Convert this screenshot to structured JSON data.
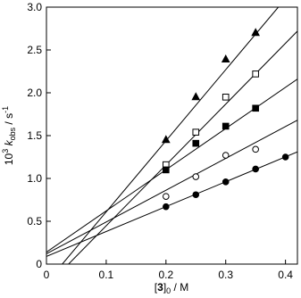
{
  "chart_data": {
    "type": "scatter",
    "y_label": {
      "parts": [
        "10",
        "3",
        " k",
        "obs",
        " / s",
        "-1"
      ]
    },
    "x_label": {
      "parts": [
        "[",
        "3",
        "]",
        "0",
        " / M"
      ]
    },
    "xlim": [
      0,
      0.42
    ],
    "ylim": [
      0,
      3.0
    ],
    "xticks": [
      0,
      0.1,
      0.2,
      0.3,
      0.4
    ],
    "yticks": [
      0,
      0.5,
      {
        "value": 1,
        "label": "1.0"
      },
      1.5,
      {
        "value": 2,
        "label": "2.0"
      },
      2.5,
      {
        "value": 3,
        "label": "3.0"
      }
    ],
    "color": "#000000",
    "series": [
      {
        "marker": "triangle-filled",
        "x": [
          0.2,
          0.25,
          0.3,
          0.35
        ],
        "values": [
          1.45,
          1.95,
          2.39,
          2.7
        ],
        "fit": {
          "x": [
            0.0265,
            0.388
          ],
          "y": [
            0,
            3.0
          ]
        }
      },
      {
        "marker": "square-open",
        "x": [
          0.2,
          0.25,
          0.3,
          0.35
        ],
        "values": [
          1.16,
          1.54,
          1.95,
          2.22
        ],
        "fit": {
          "x": [
            0.037,
            0.42
          ],
          "y": [
            0,
            2.72
          ]
        }
      },
      {
        "marker": "square-filled",
        "x": [
          0.2,
          0.25,
          0.3,
          0.35
        ],
        "values": [
          1.1,
          1.41,
          1.61,
          1.82
        ],
        "fit": {
          "x": [
            0,
            0.42
          ],
          "y": [
            0.14,
            2.16
          ]
        }
      },
      {
        "marker": "circle-open",
        "x": [
          0.2,
          0.25,
          0.3,
          0.35
        ],
        "values": [
          0.79,
          1.02,
          1.27,
          1.34
        ],
        "fit": {
          "x": [
            0,
            0.42
          ],
          "y": [
            0.12,
            1.68
          ]
        }
      },
      {
        "marker": "circle-filled",
        "x": [
          0.2,
          0.25,
          0.3,
          0.35,
          0.4
        ],
        "values": [
          0.67,
          0.81,
          0.96,
          1.11,
          1.25
        ],
        "fit": {
          "x": [
            0,
            0.42
          ],
          "y": [
            0.09,
            1.31
          ]
        }
      }
    ]
  }
}
